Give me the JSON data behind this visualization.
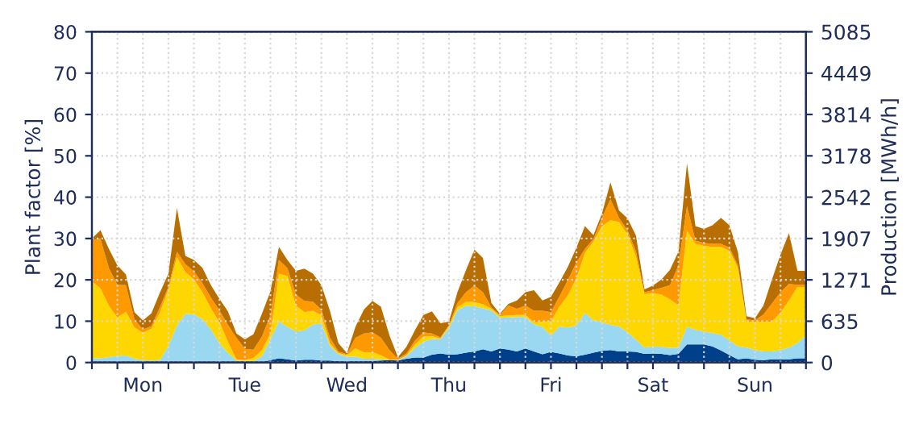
{
  "chart_data": {
    "type": "area",
    "stacked": true,
    "ylabel": "Plant factor [%]",
    "y2label": "Production [MWh/h]",
    "categories": [
      null,
      null,
      null,
      null,
      null,
      null,
      "Mon",
      null,
      null,
      null,
      null,
      null,
      null,
      null,
      null,
      null,
      null,
      null,
      "Tue",
      null,
      null,
      null,
      null,
      null,
      null,
      null,
      null,
      null,
      null,
      null,
      "Wed",
      null,
      null,
      null,
      null,
      null,
      null,
      null,
      null,
      null,
      null,
      null,
      "Thu",
      null,
      null,
      null,
      null,
      null,
      null,
      null,
      null,
      null,
      null,
      null,
      "Fri",
      null,
      null,
      null,
      null,
      null,
      null,
      null,
      null,
      null,
      null,
      null,
      "Sat",
      null,
      null,
      null,
      null,
      null,
      null,
      null,
      null,
      null,
      null,
      null,
      "Sun",
      null,
      null,
      null,
      null,
      null,
      null
    ],
    "series": [
      {
        "color": "#003f8a",
        "values": [
          0,
          0,
          0,
          0,
          0,
          0,
          0,
          0,
          0,
          0,
          0,
          0,
          0,
          0,
          0,
          0,
          0,
          0,
          0,
          0,
          0.1,
          0.6,
          1,
          0.8,
          0.5,
          0.7,
          0.7,
          0.5,
          0.5,
          0.3,
          0.3,
          0.3,
          0.3,
          0.4,
          0.5,
          0.6,
          0.5,
          0.9,
          1.2,
          1.2,
          1.9,
          2.2,
          1.9,
          2,
          2.4,
          2.7,
          3.2,
          2.7,
          3.4,
          3.1,
          2.7,
          3.4,
          2.7,
          2,
          2.6,
          2.2,
          1.7,
          1.5,
          1.9,
          2.4,
          2.8,
          3,
          2.7,
          2.7,
          2.6,
          2.1,
          2.2,
          2.1,
          1.8,
          2.1,
          4.4,
          4.4,
          4.4,
          3.9,
          2.9,
          1.8,
          0.8,
          1,
          0.7,
          0.6,
          0.8,
          0.8,
          0.8,
          1,
          1
        ]
      },
      {
        "color": "#99d8f0",
        "values": [
          1,
          1,
          1.3,
          1.6,
          1.7,
          0.9,
          0.6,
          0.5,
          0.6,
          4,
          8.9,
          11.8,
          11.6,
          10.5,
          8,
          4.7,
          2.3,
          0.5,
          0.4,
          0.4,
          1.4,
          5,
          8.9,
          7.8,
          7,
          7.1,
          8.5,
          8.9,
          3.5,
          1.7,
          1.1,
          1.1,
          0.6,
          0.5,
          0.3,
          0,
          0.1,
          0.6,
          2.3,
          3.8,
          3.8,
          3.4,
          6.4,
          10.6,
          11.3,
          10.9,
          9.9,
          9.8,
          7.4,
          7.8,
          8.3,
          7.6,
          6.5,
          6.6,
          3.9,
          6.5,
          6.8,
          7.4,
          10.1,
          7.8,
          6.9,
          6.1,
          6,
          4.6,
          2.9,
          1.5,
          1.7,
          1.7,
          1.7,
          1.5,
          4.2,
          3.5,
          3.1,
          3.2,
          3.8,
          3.5,
          3.1,
          2.6,
          2.3,
          2.1,
          1.9,
          2.2,
          2.8,
          3.7,
          5.6
        ]
      },
      {
        "color": "#ffd700",
        "values": [
          18.6,
          17,
          12.4,
          9.3,
          10.6,
          7.6,
          6.6,
          7.7,
          11.5,
          13.7,
          16.6,
          10.1,
          8.5,
          6.5,
          5.1,
          5.1,
          2.7,
          0.3,
          0.2,
          0.7,
          1.5,
          1.4,
          11.6,
          12.3,
          6.3,
          4.4,
          3.3,
          2,
          0.7,
          0.3,
          0.4,
          2,
          1.6,
          1.6,
          1,
          0.1,
          0.1,
          0.2,
          0.9,
          1.3,
          0.7,
          0.2,
          0.5,
          0.8,
          1,
          1,
          1,
          0.5,
          0.4,
          0.5,
          0.5,
          0.5,
          0.5,
          1.3,
          3.5,
          4.8,
          7.8,
          11.5,
          14.5,
          19.1,
          23.3,
          25.3,
          25.3,
          23.7,
          20.2,
          12.9,
          12.9,
          12.6,
          11.8,
          10.2,
          23.3,
          20.8,
          20.7,
          20.9,
          21.3,
          21.7,
          18.9,
          6.3,
          6.9,
          7.2,
          7.2,
          9.1,
          11.4,
          13.6,
          11.7
        ]
      },
      {
        "color": "#ff9900",
        "values": [
          10,
          12,
          9.1,
          7.9,
          6.4,
          2,
          0.8,
          0.6,
          1.3,
          0.6,
          1.3,
          1.9,
          2,
          2.2,
          2.6,
          2.8,
          4.1,
          5.2,
          2.7,
          2,
          3.3,
          4.4,
          3.3,
          1.9,
          2.6,
          2.7,
          2.2,
          1.4,
          1.3,
          0.4,
          0.2,
          2.6,
          4.5,
          4.8,
          4.2,
          2.3,
          0.2,
          0.5,
          0.9,
          1,
          0.6,
          0.3,
          0.2,
          1,
          2.3,
          4,
          2.9,
          0.3,
          0.3,
          2.4,
          1.5,
          2.3,
          2.8,
          2.6,
          2.2,
          2.5,
          3.7,
          3.8,
          1,
          0.6,
          2,
          5.1,
          1,
          1,
          1.2,
          0.5,
          0.7,
          1.7,
          3.4,
          9.7,
          5.9,
          0.8,
          0.7,
          0.7,
          0.7,
          0.8,
          0.7,
          0.6,
          0.3,
          1.7,
          4.4,
          4.9,
          4,
          0.5,
          0.5
        ]
      },
      {
        "color": "#b86e00",
        "values": [
          0.4,
          2,
          4.7,
          4.7,
          2.6,
          1.7,
          2.2,
          3.1,
          3.5,
          3.2,
          10.6,
          2,
          2.7,
          3.7,
          3,
          2.8,
          3.3,
          1,
          2.3,
          3.7,
          5.5,
          5.8,
          3.2,
          2,
          5.8,
          7.8,
          6.8,
          5.9,
          6.5,
          2,
          0.3,
          2.6,
          5.8,
          7.6,
          7.5,
          3.6,
          0.4,
          1.6,
          2.5,
          4.2,
          5.4,
          3.4,
          0.9,
          2.6,
          5.3,
          8.7,
          8.3,
          1.1,
          0.3,
          0.4,
          2,
          3.2,
          5,
          2.5,
          3.7,
          3.4,
          3.2,
          3.6,
          5.5,
          0.9,
          1,
          4.1,
          1.8,
          2.9,
          3.8,
          0.7,
          1.1,
          2,
          3.7,
          3.3,
          10.4,
          3.5,
          3.4,
          4.5,
          6.3,
          5.4,
          3.2,
          0.7,
          0.5,
          2.2,
          5.8,
          9.1,
          12.3,
          3.4,
          3.4
        ]
      }
    ],
    "ylim": [
      0,
      80
    ],
    "yticks": [
      0,
      10,
      20,
      30,
      40,
      50,
      60,
      70,
      80
    ],
    "y2lim": [
      0,
      5085
    ],
    "y2ticks": [
      0,
      635,
      1271,
      1907,
      2542,
      3178,
      3814,
      4449,
      5085
    ],
    "grid": true
  }
}
